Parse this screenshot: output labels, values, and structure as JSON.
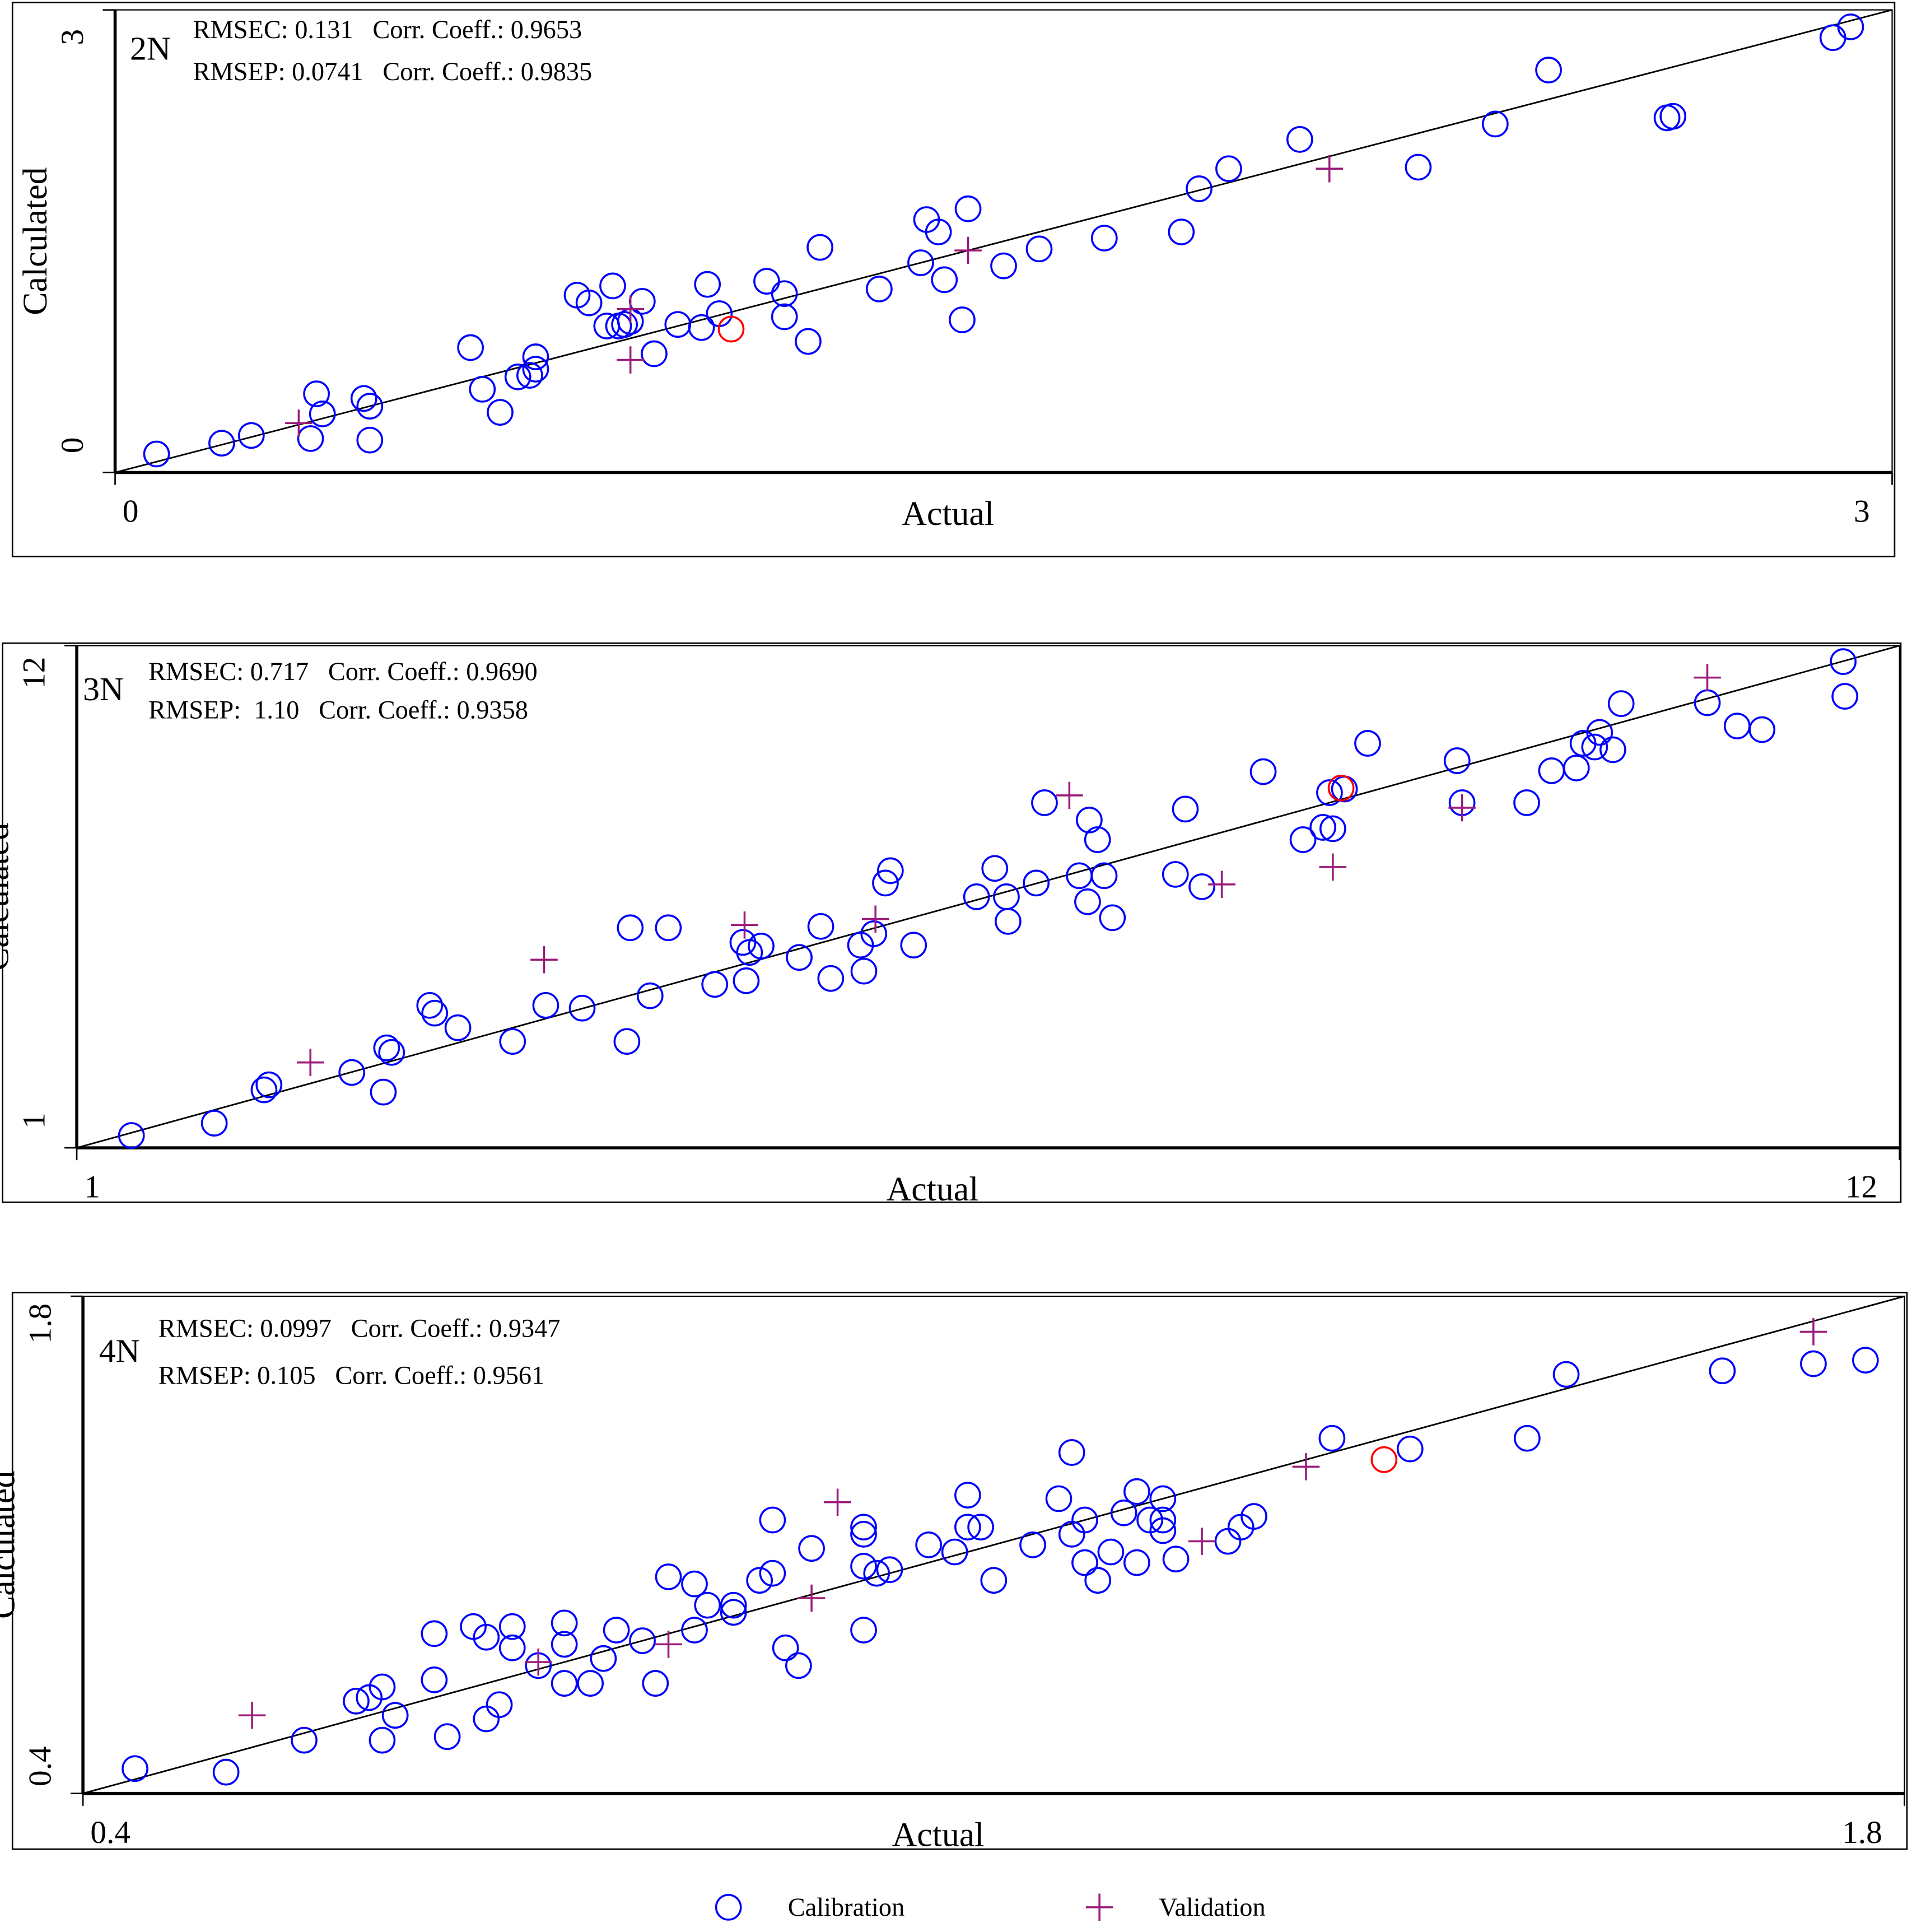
{
  "chart_data": [
    {
      "type": "scatter",
      "label": "2N",
      "annotations": [
        "RMSEC: 0.131   Corr. Coeff.: 0.9653",
        "RMSEP: 0.0741   Corr. Coeff.: 0.9835"
      ],
      "xlabel": "Actual",
      "ylabel": "Calculated",
      "xlim": [
        0,
        3
      ],
      "ylim": [
        0,
        3
      ],
      "xticks": [
        0,
        3
      ],
      "yticks": [
        0,
        3
      ],
      "series": [
        {
          "name": "Calibration",
          "color": "#0000ff",
          "marker": "circle",
          "x": [
            0.07,
            0.18,
            0.23,
            0.33,
            0.34,
            0.35,
            0.42,
            0.43,
            0.43,
            0.6,
            0.62,
            0.65,
            0.68,
            0.7,
            0.71,
            0.71,
            0.78,
            0.8,
            0.83,
            0.84,
            0.85,
            0.86,
            0.87,
            0.89,
            0.91,
            0.95,
            0.99,
            1.0,
            1.02,
            1.1,
            1.13,
            1.13,
            1.17,
            1.19,
            1.29,
            1.36,
            1.37,
            1.39,
            1.4,
            1.43,
            1.44,
            1.5,
            1.56,
            1.67,
            1.8,
            1.83,
            1.88,
            2.0,
            2.2,
            2.33,
            2.42,
            2.62,
            2.63,
            2.9,
            2.93
          ],
          "y": [
            0.12,
            0.19,
            0.24,
            0.22,
            0.51,
            0.38,
            0.48,
            0.43,
            0.21,
            0.81,
            0.54,
            0.39,
            0.62,
            0.63,
            0.67,
            0.75,
            1.15,
            1.1,
            0.95,
            1.21,
            0.95,
            0.96,
            0.98,
            1.11,
            0.77,
            0.96,
            0.94,
            1.22,
            1.03,
            1.24,
            1.01,
            1.16,
            0.85,
            1.46,
            1.19,
            1.36,
            1.64,
            1.56,
            1.25,
            0.99,
            1.71,
            1.34,
            1.45,
            1.52,
            1.56,
            1.84,
            1.97,
            2.16,
            1.98,
            2.26,
            2.61,
            2.3,
            2.31,
            2.82,
            2.89
          ]
        },
        {
          "name": "Validation",
          "color": "#9b1b7a",
          "marker": "plus",
          "x": [
            0.31,
            0.87,
            0.87,
            1.44,
            2.05
          ],
          "y": [
            0.32,
            0.73,
            1.06,
            1.44,
            1.97
          ]
        },
        {
          "color": "#ff0000",
          "marker": "circle",
          "x": [
            1.04
          ],
          "y": [
            0.93
          ]
        }
      ]
    },
    {
      "type": "scatter",
      "label": "3N",
      "annotations": [
        "RMSEC: 0.717   Corr. Coeff.: 0.9690",
        "RMSEP:  1.10   Corr. Coeff.: 0.9358"
      ],
      "xlabel": "Actual",
      "ylabel": "Calculated",
      "xlim": [
        1,
        12
      ],
      "ylim": [
        1,
        12
      ],
      "xticks": [
        1,
        12
      ],
      "yticks": [
        1,
        12
      ],
      "series": [
        {
          "color": "#0000ff",
          "marker": "circle",
          "x": [
            1.33,
            1.83,
            2.13,
            2.16,
            2.66,
            2.85,
            2.87,
            2.9,
            3.13,
            3.16,
            3.3,
            3.63,
            3.83,
            4.05,
            4.32,
            4.34,
            4.46,
            4.57,
            4.85,
            5.02,
            5.04,
            5.06,
            5.13,
            5.36,
            5.49,
            5.55,
            5.73,
            5.75,
            5.81,
            5.88,
            5.91,
            6.05,
            6.43,
            6.54,
            6.61,
            6.62,
            6.79,
            6.84,
            7.05,
            7.1,
            7.11,
            7.16,
            7.2,
            7.25,
            7.63,
            7.69,
            7.79,
            8.16,
            8.4,
            8.52,
            8.56,
            8.58,
            8.65,
            8.79,
            9.33,
            9.36,
            9.75,
            9.9,
            10.05,
            10.09,
            10.16,
            10.19,
            10.27,
            10.32,
            10.84,
            11.02,
            11.17,
            11.66,
            11.67
          ],
          "y": [
            1.27,
            1.54,
            2.27,
            2.38,
            2.65,
            2.22,
            3.19,
            3.09,
            4.12,
            3.95,
            3.63,
            3.33,
            4.12,
            4.06,
            3.33,
            5.82,
            4.33,
            5.82,
            4.58,
            5.5,
            4.66,
            5.28,
            5.42,
            5.17,
            5.85,
            4.71,
            5.44,
            4.87,
            5.69,
            6.8,
            7.07,
            5.44,
            6.5,
            7.12,
            6.5,
            5.96,
            6.8,
            8.56,
            6.96,
            6.39,
            8.18,
            7.75,
            6.96,
            6.04,
            6.99,
            8.42,
            6.72,
            9.24,
            7.75,
            8.02,
            8.78,
            7.99,
            8.86,
            9.86,
            9.48,
            8.56,
            8.56,
            9.26,
            9.32,
            9.86,
            9.78,
            10.1,
            9.72,
            10.73,
            10.75,
            10.24,
            10.16,
            11.65,
            10.89
          ]
        },
        {
          "color": "#9b1b7a",
          "marker": "plus",
          "x": [
            2.41,
            3.82,
            5.03,
            5.82,
            6.99,
            7.91,
            8.58,
            9.36,
            10.84
          ],
          "y": [
            2.87,
            5.12,
            5.88,
            6.01,
            8.72,
            6.77,
            7.15,
            8.45,
            11.3
          ]
        },
        {
          "color": "#ff0000",
          "marker": "circle",
          "x": [
            8.63
          ],
          "y": [
            8.88
          ]
        }
      ]
    },
    {
      "type": "scatter",
      "label": "4N",
      "annotations": [
        "RMSEC: 0.0997   Corr. Coeff.: 0.9347",
        "RMSEP: 0.105   Corr. Coeff.: 0.9561"
      ],
      "xlabel": "Actual",
      "ylabel": "Calculated",
      "xlim": [
        0.4,
        1.8
      ],
      "ylim": [
        0.4,
        1.8
      ],
      "xticks": [
        0.4,
        1.8
      ],
      "yticks": [
        0.4,
        1.8
      ],
      "series": [
        {
          "color": "#0000ff",
          "marker": "circle",
          "x": [
            0.44,
            0.51,
            0.57,
            0.61,
            0.62,
            0.63,
            0.63,
            0.64,
            0.67,
            0.67,
            0.68,
            0.7,
            0.71,
            0.71,
            0.72,
            0.73,
            0.73,
            0.75,
            0.77,
            0.77,
            0.77,
            0.79,
            0.8,
            0.81,
            0.83,
            0.84,
            0.85,
            0.87,
            0.87,
            0.88,
            0.9,
            0.9,
            0.92,
            0.93,
            0.93,
            0.94,
            0.95,
            0.96,
            1.0,
            1.0,
            1.0,
            1.0,
            1.01,
            1.02,
            1.05,
            1.07,
            1.08,
            1.08,
            1.09,
            1.1,
            1.13,
            1.15,
            1.16,
            1.16,
            1.17,
            1.17,
            1.18,
            1.19,
            1.2,
            1.21,
            1.21,
            1.22,
            1.23,
            1.23,
            1.23,
            1.24,
            1.28,
            1.29,
            1.3,
            1.36,
            1.42,
            1.51,
            1.54,
            1.66,
            1.73,
            1.77
          ],
          "y": [
            0.47,
            0.46,
            0.55,
            0.66,
            0.67,
            0.55,
            0.7,
            0.62,
            0.85,
            0.72,
            0.56,
            0.87,
            0.61,
            0.84,
            0.65,
            0.87,
            0.81,
            0.76,
            0.82,
            0.88,
            0.71,
            0.71,
            0.78,
            0.86,
            0.83,
            0.71,
            1.01,
            0.86,
            0.99,
            0.93,
            0.91,
            0.93,
            1.0,
            1.17,
            1.02,
            0.81,
            0.76,
            1.09,
            1.13,
            1.15,
            0.86,
            1.04,
            1.02,
            1.03,
            1.1,
            1.08,
            1.24,
            1.15,
            1.15,
            1.0,
            1.1,
            1.23,
            1.13,
            1.36,
            1.05,
            1.17,
            1.0,
            1.08,
            1.19,
            1.05,
            1.25,
            1.17,
            1.17,
            1.23,
            1.14,
            1.06,
            1.11,
            1.15,
            1.18,
            1.4,
            1.37,
            1.4,
            1.58,
            1.59,
            1.61,
            1.62
          ]
        },
        {
          "color": "#9b1b7a",
          "marker": "plus",
          "x": [
            0.53,
            0.75,
            0.85,
            0.96,
            0.98,
            1.26,
            1.34,
            1.73
          ],
          "y": [
            0.62,
            0.77,
            0.82,
            0.95,
            1.22,
            1.11,
            1.32,
            1.7
          ]
        },
        {
          "color": "#ff0000",
          "marker": "circle",
          "x": [
            1.4
          ],
          "y": [
            1.34
          ]
        }
      ]
    }
  ]
}
